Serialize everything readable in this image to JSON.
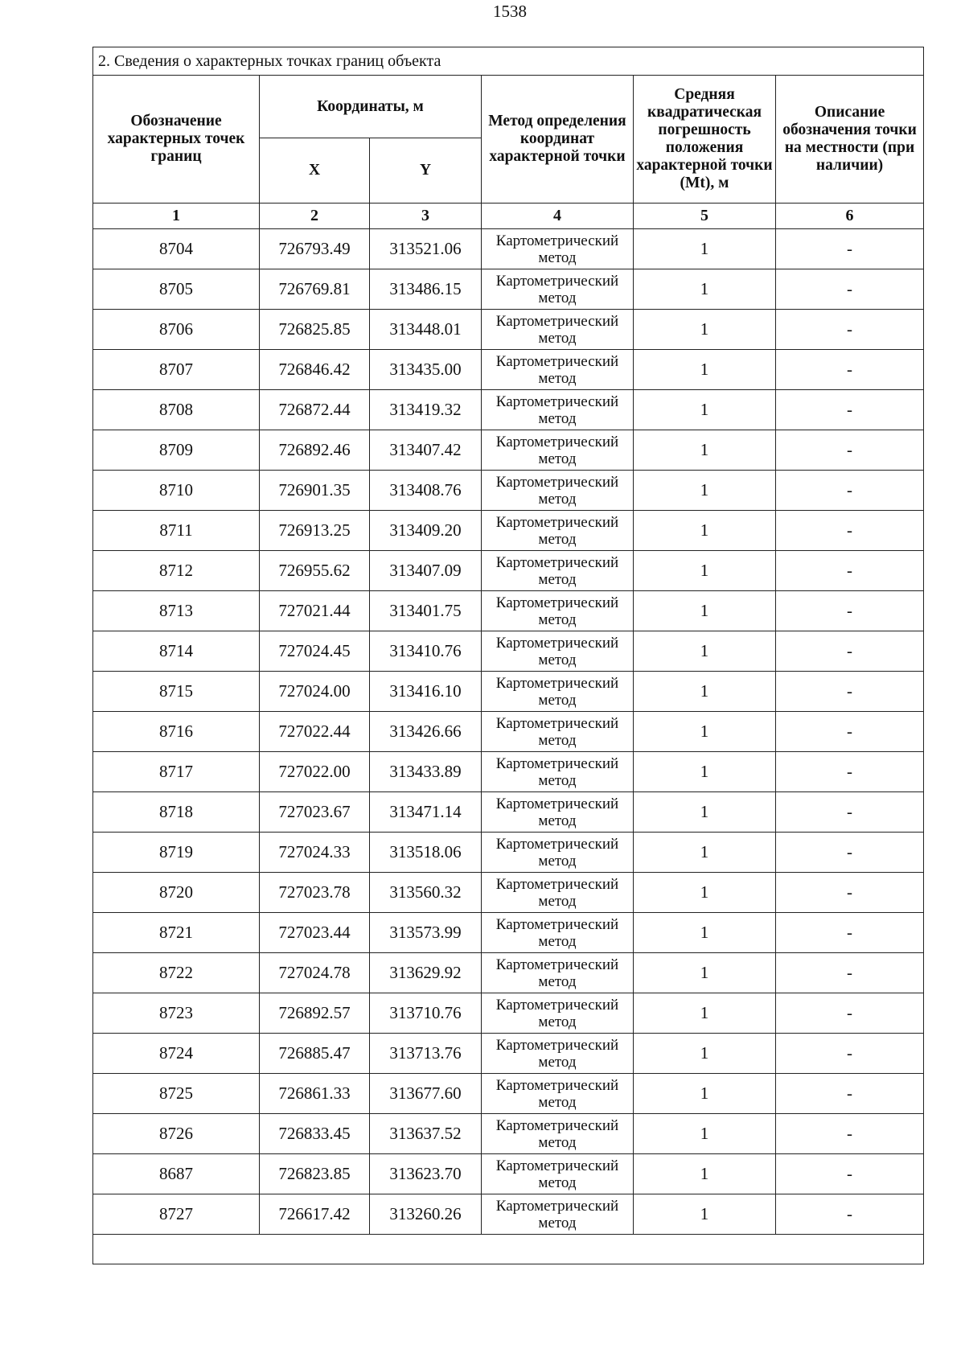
{
  "page_number": "1538",
  "section_title": "2. Сведения о характерных точках границ объекта",
  "headers": {
    "designation": "Обозначение характерных точек границ",
    "coordinates": "Координаты, м",
    "x": "X",
    "y": "Y",
    "method": "Метод определения координат характерной точки",
    "error": "Средняя квадратическая погрешность положения характерной точки (Mt), м",
    "description": "Описание обозначения точки на местности (при наличии)"
  },
  "column_numbers": [
    "1",
    "2",
    "3",
    "4",
    "5",
    "6"
  ],
  "rows": [
    {
      "id": "8704",
      "x": "726793.49",
      "y": "313521.06",
      "method": "Картометрический метод",
      "mt": "1",
      "desc": "-"
    },
    {
      "id": "8705",
      "x": "726769.81",
      "y": "313486.15",
      "method": "Картометрический метод",
      "mt": "1",
      "desc": "-"
    },
    {
      "id": "8706",
      "x": "726825.85",
      "y": "313448.01",
      "method": "Картометрический метод",
      "mt": "1",
      "desc": "-"
    },
    {
      "id": "8707",
      "x": "726846.42",
      "y": "313435.00",
      "method": "Картометрический метод",
      "mt": "1",
      "desc": "-"
    },
    {
      "id": "8708",
      "x": "726872.44",
      "y": "313419.32",
      "method": "Картометрический метод",
      "mt": "1",
      "desc": "-"
    },
    {
      "id": "8709",
      "x": "726892.46",
      "y": "313407.42",
      "method": "Картометрический метод",
      "mt": "1",
      "desc": "-"
    },
    {
      "id": "8710",
      "x": "726901.35",
      "y": "313408.76",
      "method": "Картометрический метод",
      "mt": "1",
      "desc": "-"
    },
    {
      "id": "8711",
      "x": "726913.25",
      "y": "313409.20",
      "method": "Картометрический метод",
      "mt": "1",
      "desc": "-"
    },
    {
      "id": "8712",
      "x": "726955.62",
      "y": "313407.09",
      "method": "Картометрический метод",
      "mt": "1",
      "desc": "-"
    },
    {
      "id": "8713",
      "x": "727021.44",
      "y": "313401.75",
      "method": "Картометрический метод",
      "mt": "1",
      "desc": "-"
    },
    {
      "id": "8714",
      "x": "727024.45",
      "y": "313410.76",
      "method": "Картометрический метод",
      "mt": "1",
      "desc": "-"
    },
    {
      "id": "8715",
      "x": "727024.00",
      "y": "313416.10",
      "method": "Картометрический метод",
      "mt": "1",
      "desc": "-"
    },
    {
      "id": "8716",
      "x": "727022.44",
      "y": "313426.66",
      "method": "Картометрический метод",
      "mt": "1",
      "desc": "-"
    },
    {
      "id": "8717",
      "x": "727022.00",
      "y": "313433.89",
      "method": "Картометрический метод",
      "mt": "1",
      "desc": "-"
    },
    {
      "id": "8718",
      "x": "727023.67",
      "y": "313471.14",
      "method": "Картометрический метод",
      "mt": "1",
      "desc": "-"
    },
    {
      "id": "8719",
      "x": "727024.33",
      "y": "313518.06",
      "method": "Картометрический метод",
      "mt": "1",
      "desc": "-"
    },
    {
      "id": "8720",
      "x": "727023.78",
      "y": "313560.32",
      "method": "Картометрический метод",
      "mt": "1",
      "desc": "-"
    },
    {
      "id": "8721",
      "x": "727023.44",
      "y": "313573.99",
      "method": "Картометрический метод",
      "mt": "1",
      "desc": "-"
    },
    {
      "id": "8722",
      "x": "727024.78",
      "y": "313629.92",
      "method": "Картометрический метод",
      "mt": "1",
      "desc": "-"
    },
    {
      "id": "8723",
      "x": "726892.57",
      "y": "313710.76",
      "method": "Картометрический метод",
      "mt": "1",
      "desc": "-"
    },
    {
      "id": "8724",
      "x": "726885.47",
      "y": "313713.76",
      "method": "Картометрический метод",
      "mt": "1",
      "desc": "-"
    },
    {
      "id": "8725",
      "x": "726861.33",
      "y": "313677.60",
      "method": "Картометрический метод",
      "mt": "1",
      "desc": "-"
    },
    {
      "id": "8726",
      "x": "726833.45",
      "y": "313637.52",
      "method": "Картометрический метод",
      "mt": "1",
      "desc": "-"
    },
    {
      "id": "8687",
      "x": "726823.85",
      "y": "313623.70",
      "method": "Картометрический метод",
      "mt": "1",
      "desc": "-"
    },
    {
      "id": "8727",
      "x": "726617.42",
      "y": "313260.26",
      "method": "Картометрический метод",
      "mt": "1",
      "desc": "-"
    }
  ]
}
